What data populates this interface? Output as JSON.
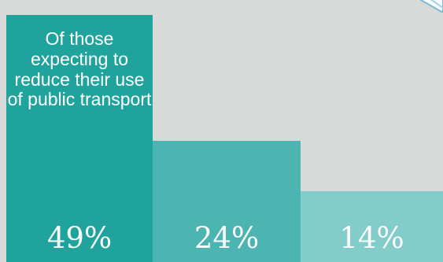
{
  "chart_data": {
    "type": "bar",
    "caption": "Of those expecting to reduce their use of public transport",
    "categories": [
      "",
      "",
      ""
    ],
    "values": [
      49,
      24,
      14
    ],
    "value_labels": [
      "49%",
      "24%",
      "14%"
    ],
    "colors": [
      "#21a39d",
      "#4cb5b2",
      "#82ccc9"
    ],
    "ylim": [
      0,
      52
    ],
    "grid": false,
    "legend": "none"
  },
  "decor": {
    "corner_icon": "paper-corner-icon",
    "corner_icon_color": "#7bb8d6"
  }
}
